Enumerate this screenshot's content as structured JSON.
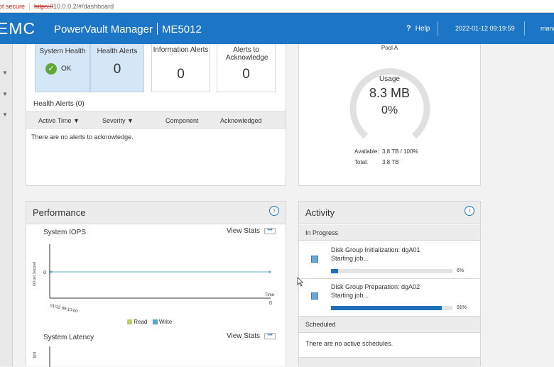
{
  "browser": {
    "security": "ot secure",
    "url_scheme": "https://",
    "url_rest": "10.0.0.2/#/dashboard"
  },
  "header": {
    "logo": "EMC",
    "product": "PowerVault Manager",
    "model": "ME5012",
    "help_icon": "?",
    "help": "Help",
    "datetime": "2022-01-12 09:19:59",
    "user": "mana"
  },
  "health": {
    "tiles": [
      {
        "label": "System Health",
        "value": "OK"
      },
      {
        "label": "Health Alerts",
        "value": "0"
      },
      {
        "label": "Information Alerts",
        "value": "0"
      },
      {
        "label": "Alerts to Acknowledge",
        "value": "0"
      }
    ],
    "alerts_title": "Health Alerts (0)",
    "columns": [
      "Active Time",
      "Severity",
      "Component",
      "Acknowledged"
    ],
    "empty": "There are no alerts to acknowledge."
  },
  "capacity": {
    "pool": "Pool A",
    "usage_label": "Usage",
    "usage_value": "8.3 MB",
    "usage_percent": "0%",
    "usage_fraction": 0.0,
    "available_label": "Available:",
    "available_value": "3.8 TB / 100%",
    "total_label": "Total:",
    "total_value": "3.8 TB"
  },
  "performance": {
    "title": "Performance",
    "view_stats": "View Stats",
    "more": "•••",
    "iops_title": "System IOPS",
    "ylabel": "I/O per Second",
    "xlabel": "Time",
    "y_tick": "0",
    "x_tick_start": "01/12 09:10:00",
    "x_tick_end": "0",
    "legend": [
      {
        "name": "Read",
        "color": "#b5cf6b"
      },
      {
        "name": "Write",
        "color": "#5ba3c9"
      }
    ],
    "latency_title": "System Latency",
    "latency_ylabel": "(µs)"
  },
  "activity": {
    "title": "Activity",
    "in_progress": "In Progress",
    "jobs": [
      {
        "name": "Disk Group Initialization: dgA01",
        "status": "Starting job...",
        "percent": "6%",
        "fraction": 0.06
      },
      {
        "name": "Disk Group Preparation: dgA02",
        "status": "Starting job...",
        "percent": "91%",
        "fraction": 0.91
      }
    ],
    "scheduled": "Scheduled",
    "no_schedules": "There are no active schedules."
  },
  "colors": {
    "brand": "#1c75c5",
    "ok": "#5fa83a",
    "progress": "#1c6fb8",
    "gauge": "#e0e0e0"
  }
}
